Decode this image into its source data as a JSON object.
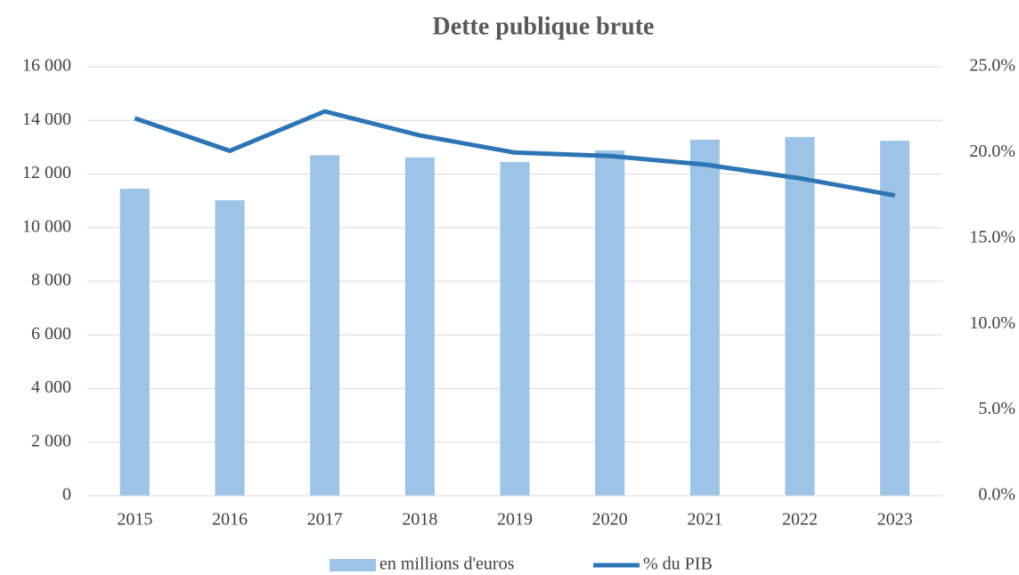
{
  "chart_data": {
    "type": "bar",
    "title": "Dette publique brute",
    "categories": [
      "2015",
      "2016",
      "2017",
      "2018",
      "2019",
      "2020",
      "2021",
      "2022",
      "2023"
    ],
    "series": [
      {
        "name": "en millions d'euros",
        "type": "bar",
        "color": "#9dc3e6",
        "values": [
          11450,
          11020,
          12700,
          12620,
          12450,
          12880,
          13280,
          13380,
          13240
        ]
      },
      {
        "name": "% du PIB",
        "type": "line",
        "axis": "y2",
        "color": "#2e75b6",
        "values": [
          22.0,
          20.1,
          22.4,
          21.0,
          20.0,
          19.8,
          19.3,
          18.5,
          17.5
        ]
      }
    ],
    "ylim": [
      0,
      16000
    ],
    "yticks": [
      0,
      {
        "value": 2000,
        "label": "2 000"
      },
      {
        "value": 4000,
        "label": "4 000"
      },
      {
        "value": 6000,
        "label": "6 000"
      },
      {
        "value": 8000,
        "label": "8 000"
      },
      {
        "value": 10000,
        "label": "10 000"
      },
      {
        "value": 12000,
        "label": "12 000"
      },
      {
        "value": 14000,
        "label": "14 000"
      },
      {
        "value": 16000,
        "label": "16 000"
      }
    ],
    "y2lim": [
      0,
      25
    ],
    "y2ticks": [
      {
        "value": 0,
        "label": "0.0%"
      },
      {
        "value": 5,
        "label": "5.0%"
      },
      {
        "value": 10,
        "label": "10.0%"
      },
      {
        "value": 15,
        "label": "15.0%"
      },
      {
        "value": 20,
        "label": "20.0%"
      },
      {
        "value": 25,
        "label": "25.0%"
      }
    ],
    "grid": true,
    "legend": "bottom"
  }
}
